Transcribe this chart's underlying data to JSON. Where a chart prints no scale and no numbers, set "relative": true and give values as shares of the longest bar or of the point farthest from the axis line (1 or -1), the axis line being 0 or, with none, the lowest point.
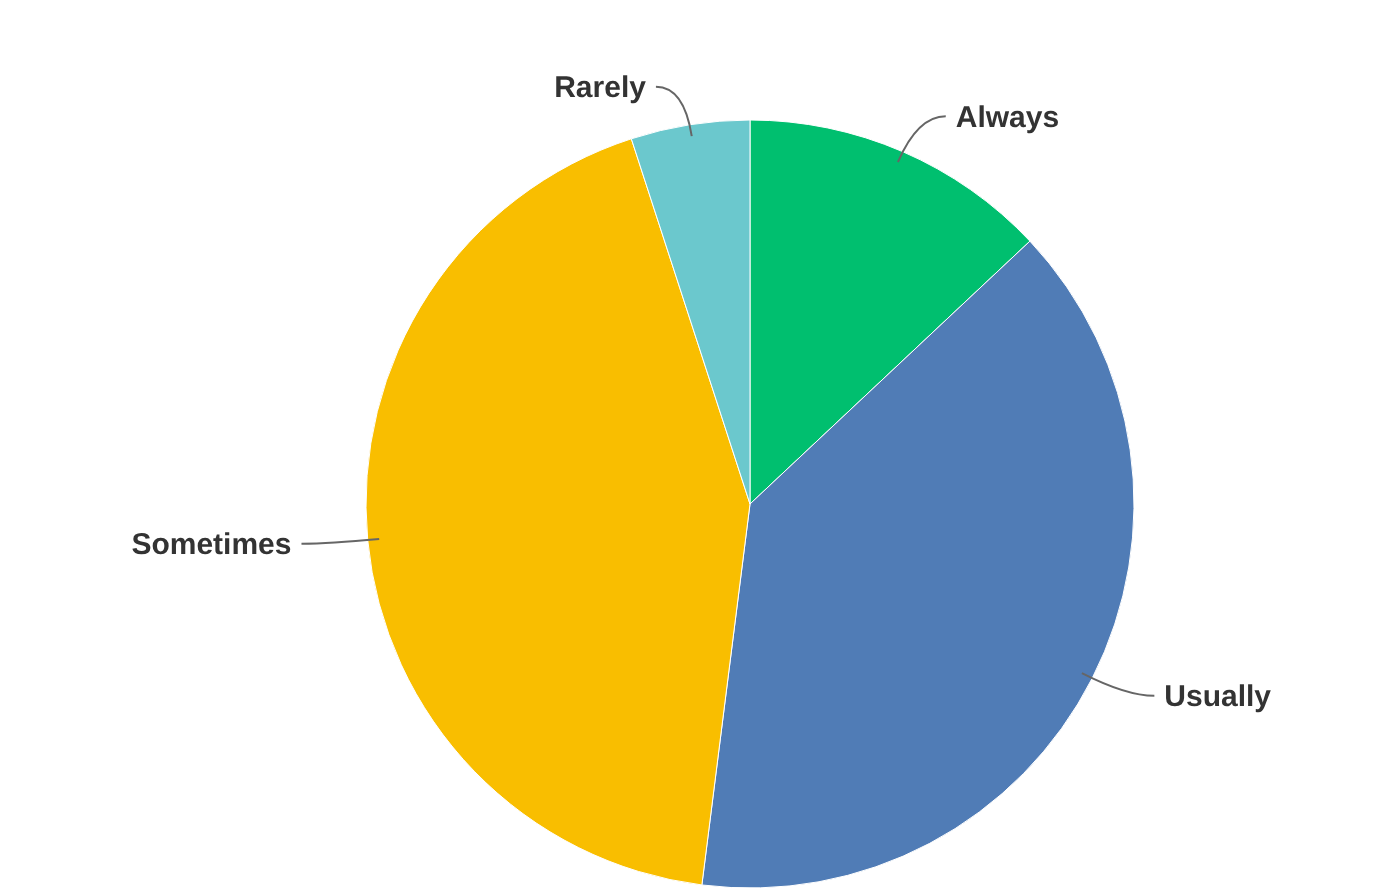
{
  "chart_data": {
    "type": "pie",
    "relative": true,
    "categories": [
      "Always",
      "Usually",
      "Sometimes",
      "Rarely"
    ],
    "values": [
      13,
      39,
      43,
      5
    ],
    "colors": [
      "#00bf6f",
      "#507cb6",
      "#f9be00",
      "#6bc8cd"
    ]
  }
}
